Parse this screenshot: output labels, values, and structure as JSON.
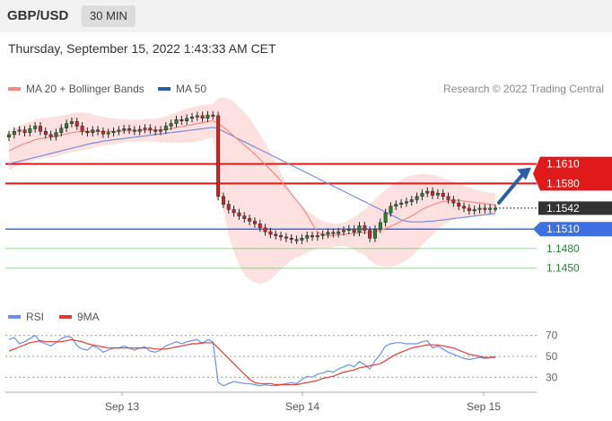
{
  "header": {
    "symbol": "GBP/USD",
    "timeframe": "30 MIN"
  },
  "timestamp": "Thursday, September 15, 2022 1:43:33 AM CET",
  "legend": {
    "ma20_label": "MA 20 + Bollinger Bands",
    "ma50_label": "MA 50",
    "rsi_label": "RSI",
    "ma9_label": "9MA"
  },
  "copyright": "Research © 2022 Trading Central",
  "colors": {
    "resistance": "#e0191b",
    "support": "#3d6fe0",
    "target": "#4caf50",
    "current": "#333333",
    "candle_up": "#2e7d32",
    "candle_down": "#c62828",
    "ma20": "#f28b82",
    "ma50": "#7b8ed4",
    "bollinger": "#fcd7d7",
    "rsi": "#6b8fe3",
    "rsi_ma9": "#e53935",
    "arrow": "#2d5fa6"
  },
  "chart_data": [
    {
      "type": "candlestick",
      "ylim": [
        1.14,
        1.171
      ],
      "x_tick_labels": [
        "Sep 13",
        "Sep 14",
        "Sep 15"
      ],
      "levels": [
        {
          "name": "resistance-1",
          "value": 1.161,
          "label": "1.1610",
          "kind": "resistance"
        },
        {
          "name": "resistance-2",
          "value": 1.158,
          "label": "1.1580",
          "kind": "resistance"
        },
        {
          "name": "current",
          "value": 1.1542,
          "label": "1.1542",
          "kind": "current"
        },
        {
          "name": "support-1",
          "value": 1.151,
          "label": "1.1510",
          "kind": "support"
        },
        {
          "name": "target-1",
          "value": 1.148,
          "label": "1.1480",
          "kind": "target"
        },
        {
          "name": "target-2",
          "value": 1.145,
          "label": "1.1450",
          "kind": "target"
        }
      ],
      "close_series": [
        1.1655,
        1.166,
        1.1662,
        1.1658,
        1.1664,
        1.1668,
        1.166,
        1.1655,
        1.1652,
        1.1658,
        1.1665,
        1.1672,
        1.1675,
        1.1668,
        1.166,
        1.1658,
        1.1662,
        1.166,
        1.1656,
        1.1658,
        1.166,
        1.1662,
        1.1664,
        1.1662,
        1.166,
        1.1663,
        1.1665,
        1.1662,
        1.166,
        1.1662,
        1.1668,
        1.1672,
        1.1678,
        1.1676,
        1.168,
        1.1682,
        1.1684,
        1.168,
        1.1685,
        1.1684,
        1.156,
        1.1548,
        1.154,
        1.1535,
        1.153,
        1.1526,
        1.1522,
        1.1518,
        1.1512,
        1.1506,
        1.1502,
        1.15,
        1.1498,
        1.1496,
        1.1494,
        1.1493,
        1.1496,
        1.15,
        1.1498,
        1.15,
        1.1502,
        1.1505,
        1.1503,
        1.1506,
        1.1508,
        1.151,
        1.1505,
        1.1515,
        1.1508,
        1.1496,
        1.151,
        1.152,
        1.1535,
        1.1545,
        1.1548,
        1.155,
        1.1552,
        1.1555,
        1.156,
        1.1565,
        1.1568,
        1.1562,
        1.1565,
        1.156,
        1.1555,
        1.155,
        1.1545,
        1.1542,
        1.1538,
        1.154,
        1.1542,
        1.154,
        1.1542,
        1.1542
      ],
      "ma20_series": [
        1.163,
        1.1634,
        1.1638,
        1.1641,
        1.1644,
        1.1647,
        1.1649,
        1.165,
        1.1651,
        1.1652,
        1.1654,
        1.1656,
        1.1658,
        1.1659,
        1.166,
        1.166,
        1.166,
        1.166,
        1.166,
        1.166,
        1.166,
        1.166,
        1.1661,
        1.1661,
        1.1661,
        1.1661,
        1.1662,
        1.1662,
        1.1662,
        1.1662,
        1.1663,
        1.1664,
        1.1666,
        1.1667,
        1.1669,
        1.167,
        1.1672,
        1.1673,
        1.1675,
        1.1676,
        1.1672,
        1.1666,
        1.166,
        1.1653,
        1.1646,
        1.1639,
        1.1632,
        1.1625,
        1.1617,
        1.1609,
        1.1601,
        1.1593,
        1.1584,
        1.1574,
        1.1564,
        1.1554,
        1.1544,
        1.1532,
        1.1518,
        1.1505,
        1.1502,
        1.15,
        1.15,
        1.1501,
        1.1502,
        1.1503,
        1.1503,
        1.1504,
        1.1505,
        1.1505,
        1.1506,
        1.1508,
        1.1511,
        1.1514,
        1.1518,
        1.1522,
        1.1526,
        1.153,
        1.1535,
        1.154,
        1.1544,
        1.1547,
        1.155,
        1.1552,
        1.1553,
        1.1554,
        1.1554,
        1.1553,
        1.1552,
        1.1551,
        1.155,
        1.1549,
        1.1548,
        1.1547
      ],
      "ma50_series": [
        1.161,
        1.1612,
        1.1614,
        1.1616,
        1.1618,
        1.162,
        1.1622,
        1.1624,
        1.1626,
        1.1628,
        1.163,
        1.1632,
        1.1634,
        1.1636,
        1.1638,
        1.164,
        1.1642,
        1.1643,
        1.1645,
        1.1646,
        1.1647,
        1.1648,
        1.1649,
        1.165,
        1.1651,
        1.1652,
        1.1653,
        1.1654,
        1.1655,
        1.1656,
        1.1657,
        1.1658,
        1.1659,
        1.166,
        1.1661,
        1.1662,
        1.1663,
        1.1664,
        1.1665,
        1.1666,
        1.1664,
        1.166,
        1.1656,
        1.1652,
        1.1648,
        1.1644,
        1.164,
        1.1636,
        1.1632,
        1.1628,
        1.1624,
        1.162,
        1.1616,
        1.1612,
        1.1608,
        1.1604,
        1.16,
        1.1596,
        1.1592,
        1.1588,
        1.1584,
        1.158,
        1.1576,
        1.1572,
        1.1568,
        1.1564,
        1.156,
        1.1556,
        1.1552,
        1.1548,
        1.1544,
        1.154,
        1.1536,
        1.1532,
        1.1528,
        1.1524,
        1.1522,
        1.1521,
        1.1521,
        1.1521,
        1.1522,
        1.1522,
        1.1523,
        1.1524,
        1.1525,
        1.1526,
        1.1527,
        1.1528,
        1.1529,
        1.153,
        1.1531,
        1.1532,
        1.1533,
        1.1534
      ],
      "bb_upper_series": [
        1.166,
        1.1664,
        1.1668,
        1.1672,
        1.1675,
        1.1678,
        1.168,
        1.1681,
        1.1682,
        1.1683,
        1.1684,
        1.1686,
        1.1688,
        1.1689,
        1.1689,
        1.1688,
        1.1686,
        1.1684,
        1.1682,
        1.1681,
        1.168,
        1.1679,
        1.1679,
        1.1678,
        1.1678,
        1.1678,
        1.1679,
        1.1679,
        1.168,
        1.1681,
        1.1683,
        1.1686,
        1.1689,
        1.1692,
        1.1695,
        1.1697,
        1.1699,
        1.17,
        1.1701,
        1.1702,
        1.171,
        1.1712,
        1.171,
        1.1705,
        1.1698,
        1.169,
        1.168,
        1.1668,
        1.1656,
        1.1642,
        1.1628,
        1.1612,
        1.1596,
        1.158,
        1.1566,
        1.1554,
        1.1545,
        1.1538,
        1.1532,
        1.1527,
        1.1522,
        1.152,
        1.1518,
        1.1518,
        1.152,
        1.1524,
        1.1528,
        1.1534,
        1.154,
        1.1548,
        1.1556,
        1.1563,
        1.157,
        1.1576,
        1.1582,
        1.1586,
        1.159,
        1.1592,
        1.1594,
        1.1595,
        1.1594,
        1.1593,
        1.1591,
        1.1588,
        1.1586,
        1.1583,
        1.158,
        1.1577,
        1.1574,
        1.1571,
        1.1569,
        1.1567,
        1.1566,
        1.1565
      ],
      "bb_lower_series": [
        1.16,
        1.1604,
        1.1608,
        1.161,
        1.1613,
        1.1616,
        1.1618,
        1.1619,
        1.162,
        1.1621,
        1.1624,
        1.1626,
        1.1628,
        1.1629,
        1.1631,
        1.1632,
        1.1634,
        1.1636,
        1.1638,
        1.1639,
        1.164,
        1.1641,
        1.1643,
        1.1644,
        1.1644,
        1.1644,
        1.1645,
        1.1645,
        1.1644,
        1.1643,
        1.1643,
        1.1642,
        1.1643,
        1.1642,
        1.1643,
        1.1643,
        1.1645,
        1.1646,
        1.1649,
        1.165,
        1.158,
        1.154,
        1.15,
        1.1475,
        1.1455,
        1.144,
        1.1432,
        1.1428,
        1.1426,
        1.1428,
        1.1432,
        1.144,
        1.1448,
        1.1455,
        1.1462,
        1.1466,
        1.147,
        1.1474,
        1.1477,
        1.148,
        1.1481,
        1.1481,
        1.1482,
        1.1484,
        1.1484,
        1.1482,
        1.1478,
        1.1474,
        1.147,
        1.1462,
        1.1456,
        1.1453,
        1.1452,
        1.1452,
        1.1454,
        1.1458,
        1.1462,
        1.1468,
        1.1476,
        1.1485,
        1.1494,
        1.1501,
        1.1509,
        1.1516,
        1.152,
        1.1525,
        1.1528,
        1.1529,
        1.153,
        1.1531,
        1.1531,
        1.1531,
        1.153,
        1.1529
      ]
    },
    {
      "type": "line",
      "ylim": [
        20,
        80
      ],
      "y_tick_labels": [
        "70",
        "50",
        "30"
      ],
      "x_tick_labels": [
        "Sep 13",
        "Sep 14",
        "Sep 15"
      ],
      "series": [
        {
          "name": "RSI",
          "values": [
            66,
            68,
            62,
            64,
            67,
            70,
            64,
            62,
            60,
            63,
            67,
            69,
            68,
            60,
            57,
            56,
            60,
            58,
            54,
            56,
            58,
            58,
            60,
            58,
            56,
            58,
            59,
            55,
            54,
            56,
            60,
            62,
            64,
            62,
            64,
            65,
            66,
            62,
            66,
            64,
            25,
            22,
            24,
            26,
            25,
            24,
            24,
            23,
            22,
            23,
            22,
            22,
            23,
            24,
            25,
            24,
            28,
            31,
            30,
            33,
            34,
            36,
            35,
            38,
            40,
            42,
            40,
            45,
            42,
            38,
            46,
            52,
            60,
            62,
            63,
            63,
            62,
            62,
            62,
            64,
            65,
            58,
            60,
            57,
            54,
            52,
            50,
            48,
            47,
            48,
            49,
            48,
            49,
            50
          ]
        },
        {
          "name": "9MA",
          "values": [
            55,
            57,
            59,
            61,
            63,
            64,
            65,
            64,
            64,
            64,
            64,
            65,
            66,
            65,
            64,
            62,
            61,
            60,
            59,
            58,
            58,
            58,
            58,
            58,
            58,
            58,
            58,
            58,
            57,
            57,
            57,
            58,
            59,
            60,
            61,
            62,
            62,
            63,
            63,
            63,
            58,
            53,
            48,
            43,
            38,
            33,
            28,
            25,
            24,
            24,
            24,
            23,
            23,
            23,
            23,
            23,
            24,
            25,
            26,
            27,
            29,
            30,
            31,
            33,
            35,
            36,
            37,
            39,
            40,
            41,
            42,
            43,
            46,
            49,
            52,
            54,
            56,
            58,
            59,
            60,
            61,
            61,
            61,
            60,
            59,
            58,
            56,
            54,
            52,
            51,
            50,
            49,
            49,
            49
          ]
        }
      ]
    }
  ]
}
